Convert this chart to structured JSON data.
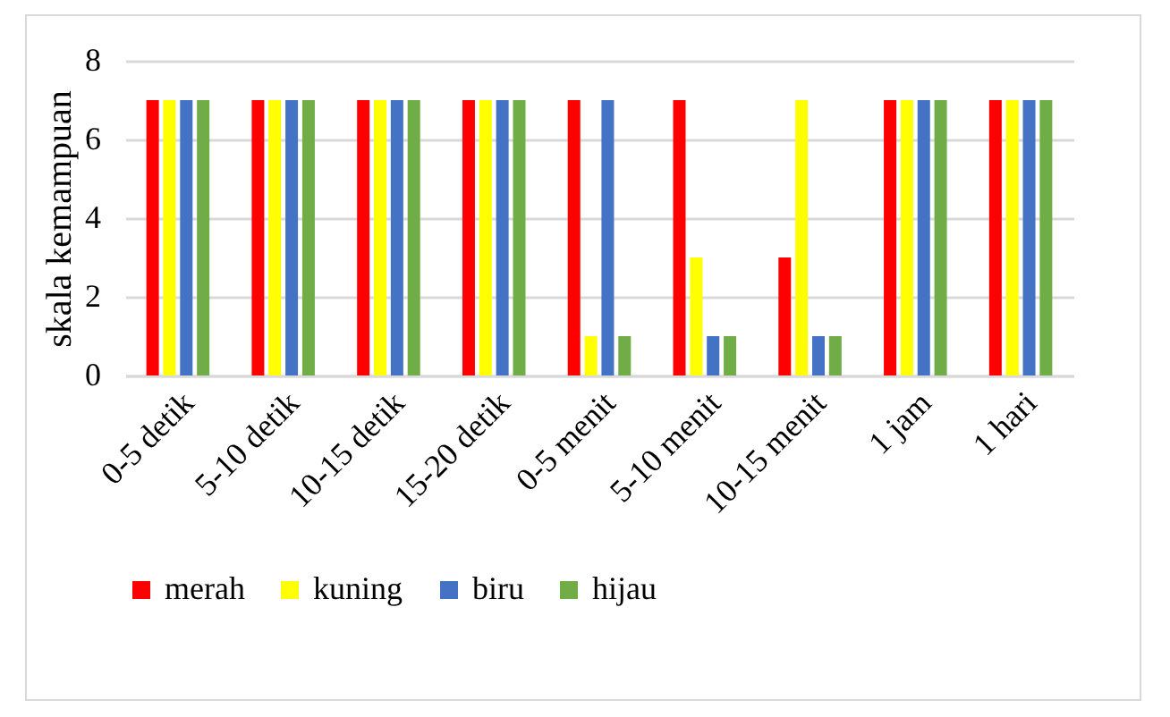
{
  "chart_data": {
    "type": "bar",
    "ylabel": "skala kemampuan",
    "categories": [
      "0-5 detik",
      "5-10 detik",
      "10-15 detik",
      "15-20 detik",
      "0-5 menit",
      "5-10 menit",
      "10-15 menit",
      "1 jam",
      "1 hari"
    ],
    "series": [
      {
        "name": "merah",
        "color": "#ff0000",
        "values": [
          7,
          7,
          7,
          7,
          7,
          7,
          3,
          7,
          7
        ]
      },
      {
        "name": "kuning",
        "color": "#ffff00",
        "values": [
          7,
          7,
          7,
          7,
          1,
          3,
          7,
          7,
          7
        ]
      },
      {
        "name": "biru",
        "color": "#4472c4",
        "values": [
          7,
          7,
          7,
          7,
          7,
          1,
          1,
          7,
          7
        ]
      },
      {
        "name": "hijau",
        "color": "#70ad47",
        "values": [
          7,
          7,
          7,
          7,
          1,
          1,
          1,
          7,
          7
        ]
      }
    ],
    "ylim": [
      0,
      8
    ],
    "yticks": [
      0,
      2,
      4,
      6,
      8
    ],
    "grid": "y",
    "legend": "bottom"
  }
}
